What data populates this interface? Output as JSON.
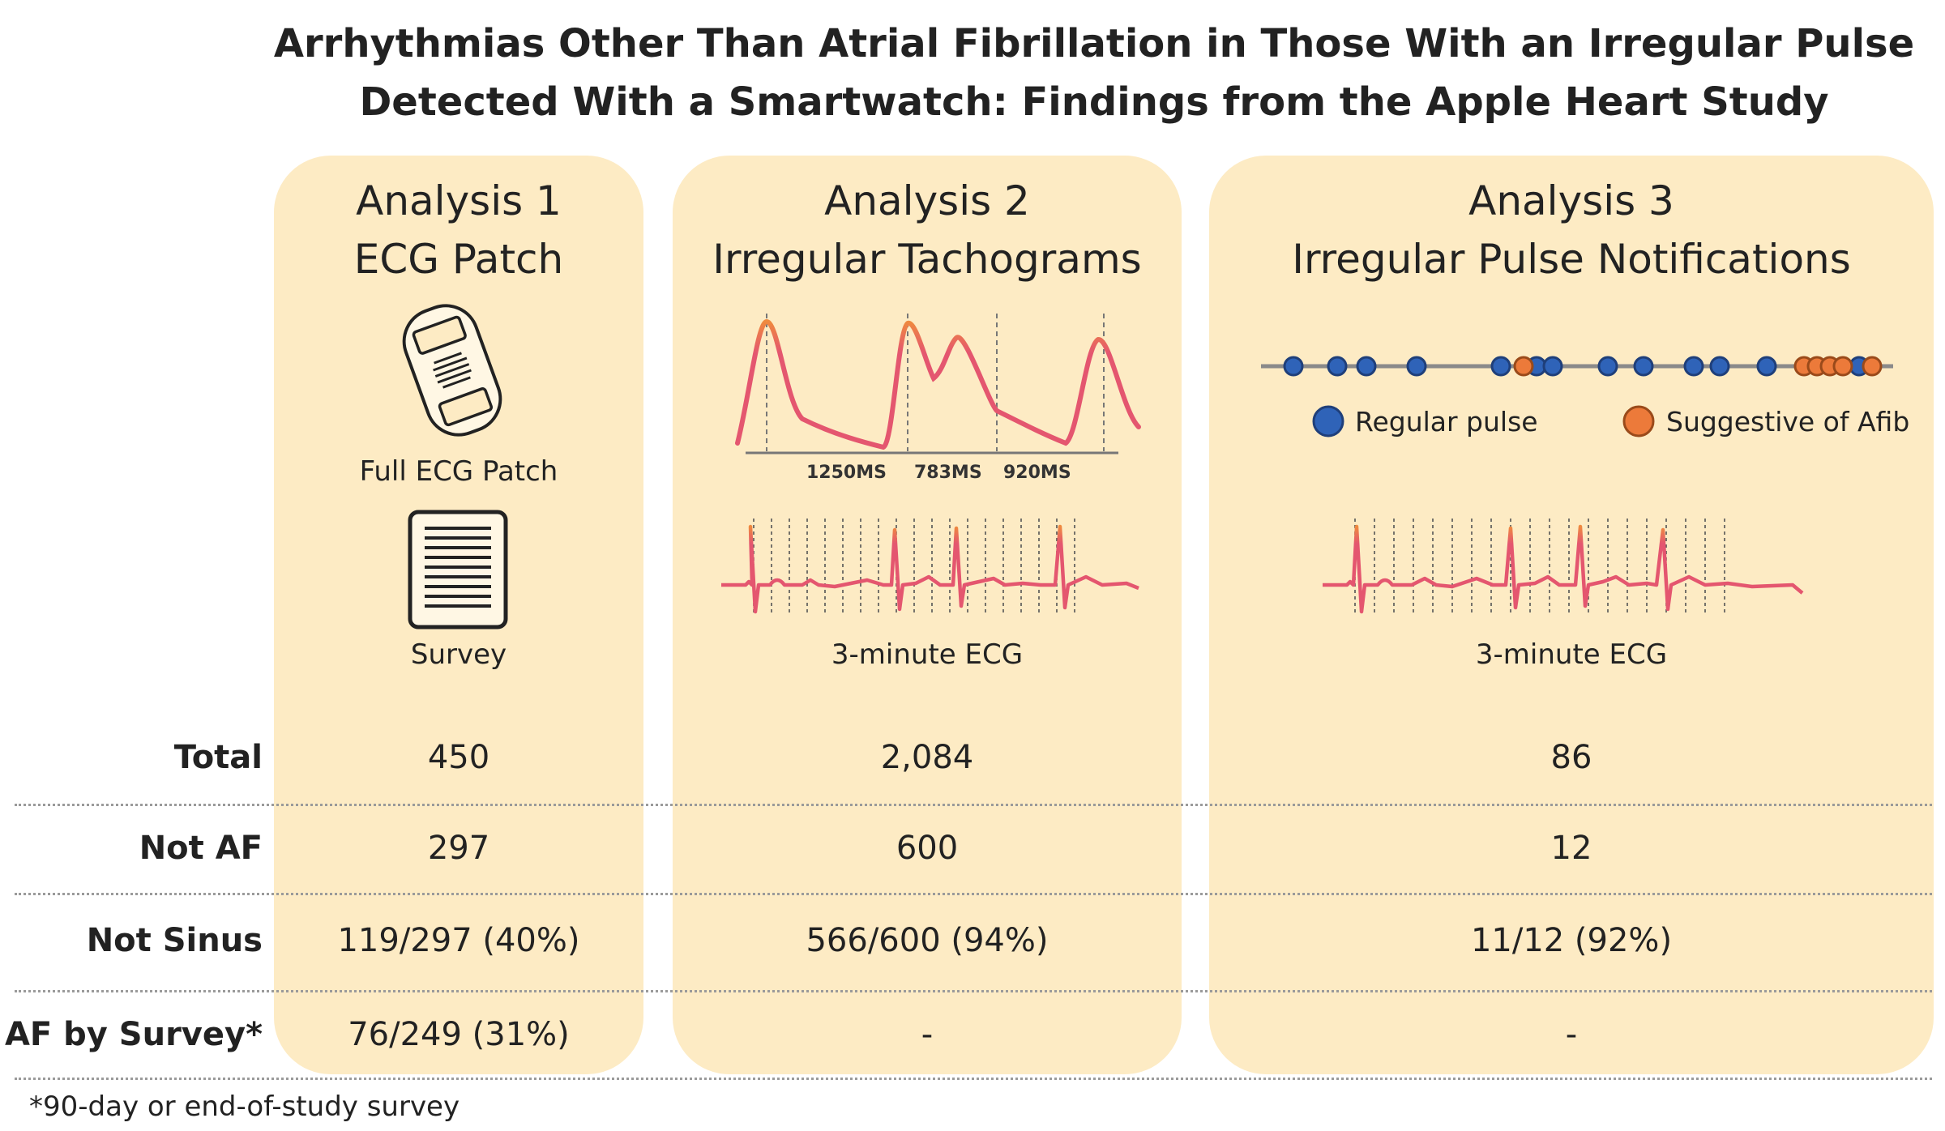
{
  "title": {
    "line1": "Arrhythmias Other Than Atrial Fibrillation in Those With an Irregular Pulse",
    "line2": "Detected With a Smartwatch: Findings from the Apple Heart Study"
  },
  "logo": {
    "icon": "heart-bars-logo"
  },
  "columns": [
    {
      "heading_line1": "Analysis 1",
      "heading_line2": "ECG Patch",
      "items": [
        {
          "icon": "ecg-patch-icon",
          "caption": "Full ECG Patch"
        },
        {
          "icon": "survey-document-icon",
          "caption": "Survey"
        }
      ]
    },
    {
      "heading_line1": "Analysis 2",
      "heading_line2": "Irregular Tachograms",
      "tachogram_intervals": [
        "1250MS",
        "783MS",
        "920MS"
      ],
      "caption": "3-minute ECG"
    },
    {
      "heading_line1": "Analysis 3",
      "heading_line2": "Irregular Pulse Notifications",
      "legend": [
        {
          "label": "Regular pulse",
          "color": "#2f63b8"
        },
        {
          "label": "Suggestive of Afib",
          "color": "#ec7a3a"
        }
      ],
      "caption": "3-minute ECG"
    }
  ],
  "rows": [
    {
      "label": "Total",
      "values": [
        "450",
        "2,084",
        "86"
      ]
    },
    {
      "label": "Not AF",
      "values": [
        "297",
        "600",
        "12"
      ]
    },
    {
      "label": "Not Sinus",
      "values": [
        "119/297 (40%)",
        "566/600 (94%)",
        "11/12 (92%)"
      ]
    },
    {
      "label": "AF by Survey*",
      "values": [
        "76/249 (31%)",
        "-",
        "-"
      ]
    }
  ],
  "footnote": "*90-day or end-of-study survey",
  "colors": {
    "column_bg": "#fdebc4",
    "wave": "#e4566f",
    "wave_peak": "#ef8a3f",
    "regular_pulse": "#2f63b8",
    "afib_pulse": "#ec7a3a"
  }
}
